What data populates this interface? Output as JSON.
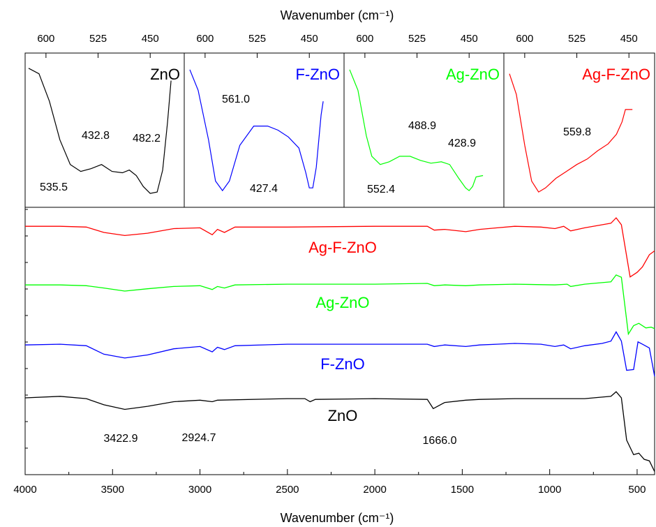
{
  "chart_data": [
    {
      "type": "line",
      "panel": "main",
      "xlabel": "Wavenumber (cm⁻¹)",
      "xlim": [
        4000,
        400
      ],
      "x_reversed": true,
      "x_ticks": [
        "4000",
        "3500",
        "3000",
        "2500",
        "2000",
        "1500",
        "1000",
        "500"
      ],
      "y_ticks_labeled": false,
      "grid": false,
      "series": [
        {
          "name": "Ag-F-ZnO",
          "color": "#ff0000",
          "points": [
            [
              4000,
              0.02
            ],
            [
              3800,
              0.02
            ],
            [
              3650,
              0.03
            ],
            [
              3550,
              0.1
            ],
            [
              3430,
              0.14
            ],
            [
              3300,
              0.11
            ],
            [
              3150,
              0.05
            ],
            [
              3000,
              0.04
            ],
            [
              2930,
              0.13
            ],
            [
              2900,
              0.06
            ],
            [
              2860,
              0.1
            ],
            [
              2800,
              0.03
            ],
            [
              2500,
              0.03
            ],
            [
              2000,
              0.02
            ],
            [
              1700,
              0.02
            ],
            [
              1660,
              0.07
            ],
            [
              1600,
              0.06
            ],
            [
              1480,
              0.09
            ],
            [
              1400,
              0.06
            ],
            [
              1300,
              0.04
            ],
            [
              1200,
              0.02
            ],
            [
              1050,
              0.03
            ],
            [
              970,
              0.05
            ],
            [
              920,
              0.02
            ],
            [
              880,
              0.08
            ],
            [
              800,
              0.04
            ],
            [
              700,
              0.0
            ],
            [
              650,
              -0.02
            ],
            [
              620,
              -0.09
            ],
            [
              590,
              0.0
            ],
            [
              540,
              0.68
            ],
            [
              500,
              0.62
            ],
            [
              470,
              0.55
            ],
            [
              430,
              0.39
            ],
            [
              400,
              0.34
            ]
          ]
        },
        {
          "name": "Ag-ZnO",
          "color": "#00ff00",
          "points": [
            [
              4000,
              0.02
            ],
            [
              3800,
              0.02
            ],
            [
              3650,
              0.03
            ],
            [
              3550,
              0.06
            ],
            [
              3430,
              0.1
            ],
            [
              3300,
              0.07
            ],
            [
              3150,
              0.04
            ],
            [
              3000,
              0.03
            ],
            [
              2930,
              0.08
            ],
            [
              2900,
              0.04
            ],
            [
              2860,
              0.06
            ],
            [
              2800,
              0.02
            ],
            [
              2500,
              0.01
            ],
            [
              2000,
              0.01
            ],
            [
              1700,
              0.0
            ],
            [
              1660,
              0.03
            ],
            [
              1600,
              0.02
            ],
            [
              1480,
              0.03
            ],
            [
              1400,
              0.02
            ],
            [
              1200,
              0.01
            ],
            [
              970,
              0.02
            ],
            [
              900,
              0.01
            ],
            [
              880,
              0.04
            ],
            [
              800,
              0.01
            ],
            [
              700,
              -0.01
            ],
            [
              650,
              -0.02
            ],
            [
              620,
              -0.11
            ],
            [
              590,
              -0.08
            ],
            [
              550,
              0.66
            ],
            [
              520,
              0.55
            ],
            [
              490,
              0.52
            ],
            [
              450,
              0.58
            ],
            [
              420,
              0.57
            ],
            [
              400,
              0.59
            ]
          ]
        },
        {
          "name": "F-ZnO",
          "color": "#0000ff",
          "points": [
            [
              4000,
              0.02
            ],
            [
              3800,
              0.01
            ],
            [
              3650,
              0.03
            ],
            [
              3550,
              0.14
            ],
            [
              3430,
              0.19
            ],
            [
              3300,
              0.15
            ],
            [
              3150,
              0.07
            ],
            [
              3000,
              0.04
            ],
            [
              2930,
              0.11
            ],
            [
              2900,
              0.05
            ],
            [
              2860,
              0.08
            ],
            [
              2800,
              0.03
            ],
            [
              2500,
              0.01
            ],
            [
              2000,
              0.01
            ],
            [
              1700,
              0.01
            ],
            [
              1660,
              0.04
            ],
            [
              1600,
              0.02
            ],
            [
              1480,
              0.04
            ],
            [
              1400,
              0.02
            ],
            [
              1300,
              0.01
            ],
            [
              1200,
              0.0
            ],
            [
              1050,
              0.01
            ],
            [
              970,
              0.04
            ],
            [
              920,
              0.02
            ],
            [
              880,
              0.07
            ],
            [
              800,
              0.03
            ],
            [
              700,
              0.0
            ],
            [
              650,
              -0.03
            ],
            [
              620,
              -0.15
            ],
            [
              590,
              -0.03
            ],
            [
              560,
              0.35
            ],
            [
              520,
              0.34
            ],
            [
              495,
              -0.02
            ],
            [
              470,
              0.01
            ],
            [
              430,
              0.06
            ],
            [
              400,
              0.43
            ]
          ]
        },
        {
          "name": "ZnO",
          "color": "#000000",
          "points": [
            [
              4000,
              0.0
            ],
            [
              3800,
              -0.02
            ],
            [
              3650,
              0.01
            ],
            [
              3550,
              0.09
            ],
            [
              3430,
              0.15
            ],
            [
              3300,
              0.11
            ],
            [
              3150,
              0.05
            ],
            [
              3000,
              0.03
            ],
            [
              2930,
              0.05
            ],
            [
              2900,
              0.03
            ],
            [
              2500,
              0.01
            ],
            [
              2400,
              0.01
            ],
            [
              2370,
              0.05
            ],
            [
              2340,
              0.02
            ],
            [
              2000,
              0.01
            ],
            [
              1700,
              0.02
            ],
            [
              1666,
              0.14
            ],
            [
              1600,
              0.06
            ],
            [
              1480,
              0.03
            ],
            [
              1400,
              0.02
            ],
            [
              1200,
              0.01
            ],
            [
              970,
              0.01
            ],
            [
              800,
              0.01
            ],
            [
              700,
              -0.01
            ],
            [
              650,
              -0.02
            ],
            [
              620,
              -0.08
            ],
            [
              590,
              0.0
            ],
            [
              560,
              0.55
            ],
            [
              520,
              0.74
            ],
            [
              490,
              0.72
            ],
            [
              460,
              0.8
            ],
            [
              430,
              0.82
            ],
            [
              400,
              0.96
            ]
          ]
        }
      ],
      "series_labels": [
        "Ag-F-ZnO",
        "Ag-ZnO",
        "F-ZnO",
        "ZnO"
      ],
      "annotations": [
        "3422.9",
        "2924.7",
        "1666.0"
      ]
    },
    {
      "type": "line",
      "panel": "inset",
      "xlabel": "Wavenumber (cm⁻¹)",
      "xlim": [
        630,
        400
      ],
      "x_reversed": true,
      "x_ticks": [
        "600",
        "525",
        "450"
      ],
      "title": "ZnO",
      "title_color": "#000000",
      "series": [
        {
          "color": "#000000",
          "points": [
            [
              625,
              0.06
            ],
            [
              610,
              0.1
            ],
            [
              595,
              0.3
            ],
            [
              580,
              0.58
            ],
            [
              565,
              0.76
            ],
            [
              550,
              0.81
            ],
            [
              535,
              0.79
            ],
            [
              520,
              0.76
            ],
            [
              505,
              0.81
            ],
            [
              490,
              0.82
            ],
            [
              480,
              0.8
            ],
            [
              470,
              0.84
            ],
            [
              460,
              0.92
            ],
            [
              450,
              0.97
            ],
            [
              440,
              0.96
            ],
            [
              432,
              0.8
            ],
            [
              425,
              0.45
            ],
            [
              420,
              0.15
            ]
          ]
        }
      ],
      "annotations": [
        "432.8",
        "482.2",
        "535.5"
      ]
    },
    {
      "type": "line",
      "panel": "inset",
      "xlabel": "Wavenumber (cm⁻¹)",
      "xlim": [
        630,
        400
      ],
      "x_reversed": true,
      "x_ticks": [
        "600",
        "525",
        "450"
      ],
      "title": "F-ZnO",
      "title_color": "#0000ff",
      "series": [
        {
          "color": "#0000ff",
          "points": [
            [
              622,
              0.07
            ],
            [
              610,
              0.22
            ],
            [
              595,
              0.58
            ],
            [
              585,
              0.88
            ],
            [
              575,
              0.95
            ],
            [
              565,
              0.88
            ],
            [
              550,
              0.62
            ],
            [
              530,
              0.48
            ],
            [
              510,
              0.48
            ],
            [
              495,
              0.51
            ],
            [
              480,
              0.56
            ],
            [
              465,
              0.64
            ],
            [
              455,
              0.82
            ],
            [
              450,
              0.93
            ],
            [
              445,
              0.93
            ],
            [
              440,
              0.78
            ],
            [
              433,
              0.4
            ],
            [
              430,
              0.3
            ]
          ]
        }
      ],
      "annotations": [
        "561.0",
        "427.4"
      ]
    },
    {
      "type": "line",
      "panel": "inset",
      "xlabel": "Wavenumber (cm⁻¹)",
      "xlim": [
        630,
        400
      ],
      "x_reversed": true,
      "x_ticks": [
        "600",
        "525",
        "450"
      ],
      "title": "Ag-ZnO",
      "title_color": "#00ff00",
      "series": [
        {
          "color": "#00ff00",
          "points": [
            [
              622,
              0.07
            ],
            [
              610,
              0.22
            ],
            [
              598,
              0.55
            ],
            [
              590,
              0.7
            ],
            [
              578,
              0.76
            ],
            [
              565,
              0.74
            ],
            [
              550,
              0.7
            ],
            [
              535,
              0.7
            ],
            [
              520,
              0.73
            ],
            [
              505,
              0.75
            ],
            [
              490,
              0.74
            ],
            [
              478,
              0.76
            ],
            [
              465,
              0.86
            ],
            [
              455,
              0.93
            ],
            [
              450,
              0.95
            ],
            [
              445,
              0.92
            ],
            [
              440,
              0.85
            ],
            [
              430,
              0.84
            ]
          ]
        }
      ],
      "annotations": [
        "488.9",
        "428.9",
        "552.4"
      ]
    },
    {
      "type": "line",
      "panel": "inset",
      "xlabel": "Wavenumber (cm⁻¹)",
      "xlim": [
        630,
        400
      ],
      "x_reversed": true,
      "x_ticks": [
        "600",
        "525",
        "450"
      ],
      "title": "Ag-F-ZnO",
      "title_color": "#ff0000",
      "series": [
        {
          "color": "#ff0000",
          "points": [
            [
              622,
              0.1
            ],
            [
              612,
              0.25
            ],
            [
              600,
              0.62
            ],
            [
              590,
              0.88
            ],
            [
              580,
              0.96
            ],
            [
              570,
              0.93
            ],
            [
              555,
              0.86
            ],
            [
              540,
              0.81
            ],
            [
              525,
              0.76
            ],
            [
              510,
              0.72
            ],
            [
              495,
              0.66
            ],
            [
              480,
              0.61
            ],
            [
              468,
              0.54
            ],
            [
              460,
              0.45
            ],
            [
              455,
              0.36
            ],
            [
              452,
              0.36
            ],
            [
              445,
              0.36
            ]
          ]
        }
      ],
      "annotations": [
        "559.8"
      ]
    }
  ]
}
